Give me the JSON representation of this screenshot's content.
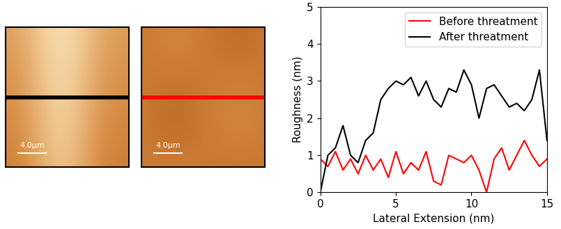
{
  "chart_data": {
    "type": "line",
    "x_label": "Lateral Extension (nm)",
    "y_label": "Roughness (nm)",
    "x": [
      0,
      0.5,
      1,
      1.5,
      2,
      2.5,
      3,
      3.5,
      4,
      4.5,
      5,
      5.5,
      6,
      6.5,
      7,
      7.5,
      8,
      8.5,
      9,
      9.5,
      10,
      10.5,
      11,
      11.5,
      12,
      12.5,
      13,
      13.5,
      14,
      14.5,
      15
    ],
    "series": [
      {
        "name": "Before threatment",
        "color": "#ff0000",
        "values": [
          0.9,
          0.7,
          1.1,
          0.6,
          0.9,
          0.5,
          1.0,
          0.6,
          0.9,
          0.4,
          1.1,
          0.5,
          0.8,
          0.6,
          1.1,
          0.3,
          0.2,
          1.0,
          0.9,
          0.8,
          1.0,
          0.6,
          0.0,
          0.9,
          1.2,
          0.6,
          1.0,
          1.4,
          1.0,
          0.7,
          0.9
        ]
      },
      {
        "name": "After threatment",
        "color": "#000000",
        "values": [
          0.0,
          1.0,
          1.2,
          1.8,
          1.0,
          0.8,
          1.4,
          1.6,
          2.5,
          2.8,
          3.0,
          2.9,
          3.1,
          2.6,
          3.0,
          2.5,
          2.3,
          2.8,
          2.7,
          3.3,
          2.9,
          2.0,
          2.8,
          2.9,
          2.6,
          2.3,
          2.4,
          2.2,
          2.5,
          3.3,
          1.4
        ]
      }
    ],
    "xlim": [
      0,
      15
    ],
    "xticks": [
      0,
      5,
      10,
      15
    ],
    "ylim": [
      0,
      5
    ],
    "yticks": [
      0,
      1,
      2,
      3,
      4,
      5
    ],
    "legend": "upper right",
    "grid": false
  },
  "images": [
    {
      "scale_bar": "4.0μm",
      "color": "#000000"
    },
    {
      "scale_bar": "4.0μm",
      "color": "#ff0000"
    }
  ]
}
